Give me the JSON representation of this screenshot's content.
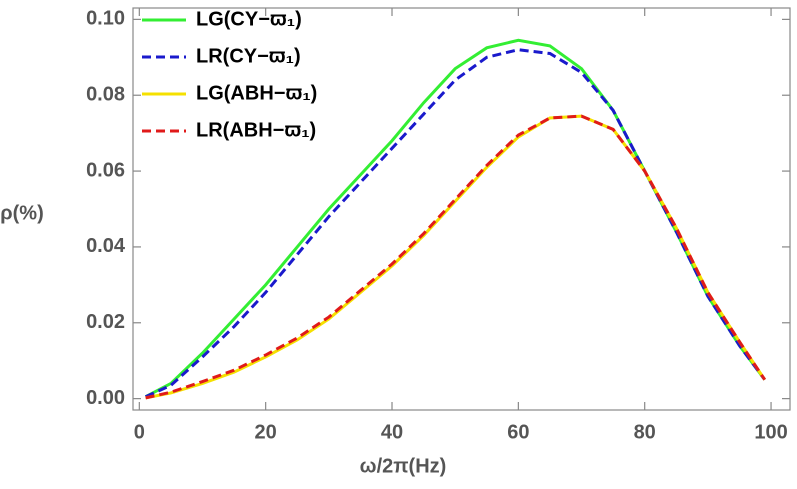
{
  "chart_data": {
    "type": "line",
    "xlabel": "ω/2π(Hz)",
    "ylabel": "ρ(%)",
    "x": [
      1,
      5,
      10,
      15,
      20,
      25,
      30,
      35,
      40,
      45,
      50,
      55,
      60,
      65,
      70,
      75,
      80,
      85,
      90,
      95,
      99
    ],
    "series": [
      {
        "name": "LG(CY−ϖ₁)",
        "color": "#33ee33",
        "style": "solid",
        "values": [
          0.0005,
          0.004,
          0.012,
          0.021,
          0.03,
          0.04,
          0.05,
          0.059,
          0.068,
          0.078,
          0.087,
          0.0925,
          0.0945,
          0.093,
          0.087,
          0.076,
          0.06,
          0.044,
          0.027,
          0.014,
          0.005
        ]
      },
      {
        "name": "LR(CY−ϖ₁)",
        "color": "#1a1acc",
        "style": "dashed",
        "values": [
          0.0005,
          0.0035,
          0.011,
          0.019,
          0.028,
          0.038,
          0.048,
          0.057,
          0.066,
          0.075,
          0.084,
          0.09,
          0.092,
          0.091,
          0.086,
          0.076,
          0.06,
          0.044,
          0.027,
          0.014,
          0.005
        ]
      },
      {
        "name": "LG(ABH−ϖ₁)",
        "color": "#f5e000",
        "style": "solid",
        "values": [
          0.0002,
          0.0015,
          0.004,
          0.007,
          0.011,
          0.0155,
          0.021,
          0.028,
          0.035,
          0.043,
          0.052,
          0.061,
          0.069,
          0.074,
          0.0745,
          0.071,
          0.06,
          0.045,
          0.028,
          0.015,
          0.005
        ]
      },
      {
        "name": "LR(ABH−ϖ₁)",
        "color": "#e01a1a",
        "style": "dashed",
        "values": [
          0.0002,
          0.0017,
          0.0045,
          0.0075,
          0.0115,
          0.016,
          0.0215,
          0.0285,
          0.0355,
          0.0435,
          0.0525,
          0.0615,
          0.0695,
          0.074,
          0.0745,
          0.071,
          0.06,
          0.045,
          0.028,
          0.015,
          0.005
        ]
      }
    ],
    "xlim": [
      -1,
      103
    ],
    "ylim": [
      -0.003,
      0.103
    ],
    "xticks": [
      0,
      20,
      40,
      60,
      80,
      100
    ],
    "yticks": [
      {
        "value": 0,
        "label": "0.00"
      },
      {
        "value": 0.02,
        "label": "0.02"
      },
      {
        "value": 0.04,
        "label": "0.04"
      },
      {
        "value": 0.06,
        "label": "0.06"
      },
      {
        "value": 0.08,
        "label": "0.08"
      },
      {
        "value": 0.1,
        "label": "0.10"
      }
    ],
    "legend": "upper-left",
    "grid": false
  }
}
